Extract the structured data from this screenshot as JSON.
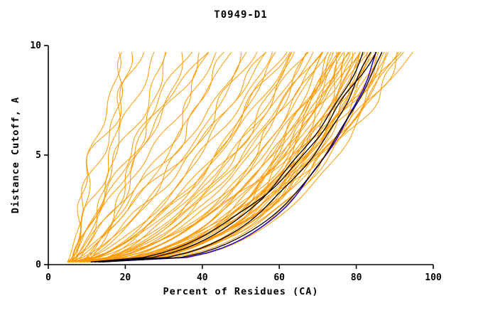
{
  "chart_data": {
    "type": "line",
    "title": "T0949-D1",
    "xlabel": "Percent of Residues (CA)",
    "ylabel": "Distance Cutoff, A",
    "xlim": [
      0,
      100
    ],
    "ylim": [
      0,
      10
    ],
    "x_ticks": [
      0,
      20,
      40,
      60,
      80,
      100
    ],
    "y_ticks": [
      0,
      5,
      10
    ],
    "grid": false,
    "legend": "none",
    "y_start": 0.12,
    "y_end": 9.7,
    "colors": {
      "ensemble": "#ff9900",
      "highlight": "#000000",
      "special": "#2400cc"
    },
    "curve_encoding": "[percent_at_bottom_cutoff, percent_at_top_cutoff, rise_shape_exponent]",
    "orange_curves": [
      [
        6,
        18,
        1.0
      ],
      [
        5,
        21,
        0.95
      ],
      [
        7,
        24,
        1.1
      ],
      [
        6,
        27,
        0.9
      ],
      [
        8,
        30,
        1.05
      ],
      [
        5,
        33,
        0.85
      ],
      [
        7,
        36,
        1.0
      ],
      [
        6,
        39,
        0.9
      ],
      [
        9,
        42,
        0.95
      ],
      [
        5,
        45,
        0.8
      ],
      [
        6,
        47,
        0.75
      ],
      [
        8,
        50,
        0.7
      ],
      [
        5,
        52,
        0.65
      ],
      [
        7,
        54,
        0.72
      ],
      [
        6,
        56,
        0.6
      ],
      [
        9,
        58,
        0.68
      ],
      [
        5,
        60,
        0.55
      ],
      [
        8,
        61,
        0.62
      ],
      [
        6,
        63,
        0.58
      ],
      [
        7,
        64,
        0.5
      ],
      [
        10,
        65,
        0.6
      ],
      [
        5,
        66,
        0.52
      ],
      [
        8,
        67,
        0.55
      ],
      [
        6,
        68,
        0.48
      ],
      [
        9,
        69,
        0.5
      ],
      [
        7,
        70,
        0.45
      ],
      [
        6,
        71,
        0.42
      ],
      [
        8,
        72,
        0.38
      ],
      [
        5,
        72,
        0.45
      ],
      [
        10,
        73,
        0.35
      ],
      [
        7,
        74,
        0.4
      ],
      [
        6,
        74,
        0.32
      ],
      [
        9,
        75,
        0.42
      ],
      [
        5,
        75,
        0.3
      ],
      [
        8,
        76,
        0.38
      ],
      [
        7,
        76,
        0.45
      ],
      [
        6,
        77,
        0.33
      ],
      [
        10,
        77,
        0.4
      ],
      [
        5,
        78,
        0.3
      ],
      [
        8,
        78,
        0.36
      ],
      [
        7,
        79,
        0.42
      ],
      [
        6,
        79,
        0.28
      ],
      [
        9,
        80,
        0.35
      ],
      [
        5,
        80,
        0.4
      ],
      [
        8,
        81,
        0.3
      ],
      [
        7,
        81,
        0.38
      ],
      [
        6,
        82,
        0.33
      ],
      [
        10,
        82,
        0.42
      ],
      [
        5,
        83,
        0.3
      ],
      [
        8,
        83,
        0.36
      ],
      [
        7,
        84,
        0.32
      ],
      [
        6,
        84,
        0.4
      ],
      [
        9,
        85,
        0.28
      ],
      [
        5,
        85,
        0.35
      ],
      [
        8,
        86,
        0.3
      ],
      [
        7,
        87,
        0.38
      ],
      [
        6,
        88,
        0.33
      ],
      [
        11,
        89,
        0.3
      ],
      [
        9,
        90,
        0.35
      ],
      [
        7,
        91,
        0.4
      ],
      [
        12,
        93,
        0.45
      ],
      [
        8,
        95,
        0.5
      ],
      [
        6,
        40,
        1.2
      ],
      [
        10,
        35,
        0.8
      ],
      [
        5,
        58,
        0.85
      ],
      [
        12,
        62,
        0.7
      ],
      [
        14,
        75,
        0.55
      ],
      [
        6,
        22,
        1.3
      ],
      [
        9,
        48,
        0.9
      ],
      [
        11,
        70,
        0.6
      ],
      [
        13,
        86,
        0.42
      ],
      [
        7,
        92,
        0.6
      ]
    ],
    "black_curves": [
      [
        12,
        82,
        0.4
      ],
      [
        13,
        84,
        0.36
      ],
      [
        11,
        85,
        0.44
      ],
      [
        14,
        86.5,
        0.33
      ]
    ],
    "blue_curves": [
      [
        13,
        85.5,
        0.3
      ]
    ]
  }
}
